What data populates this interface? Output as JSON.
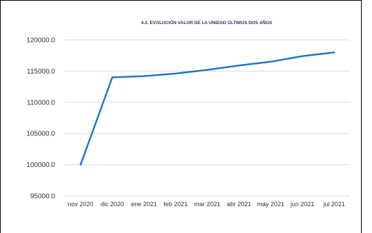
{
  "chart_data": {
    "type": "line",
    "title": "4.2. EVOLUCIÓN VALOR DE LA UNIDAD ÚLTIMOS DOS AÑOS",
    "categories": [
      "nov 2020",
      "dic 2020",
      "ene 2021",
      "feb 2021",
      "mar 2021",
      "abr 2021",
      "may 2021",
      "jun 2021",
      "jul 2021"
    ],
    "series": [
      {
        "values": [
          100000,
          114000,
          114200,
          114600,
          115200,
          115900,
          116500,
          117400,
          118000
        ]
      }
    ],
    "ylim": [
      95000,
      120000
    ],
    "yticks": [
      95000,
      100000,
      105000,
      110000,
      115000,
      120000
    ],
    "ytick_labels": [
      "95000.0",
      "100000.0",
      "105000.0",
      "110000.0",
      "115000.0",
      "120000.0"
    ],
    "grid": true,
    "colors": {
      "line": "#1f77c4",
      "grid": "#d9d9d9"
    }
  }
}
